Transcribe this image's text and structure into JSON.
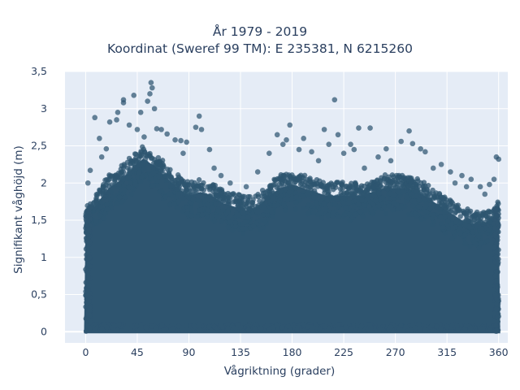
{
  "chart_data": {
    "type": "scatter",
    "title": "År 1979 - 2019",
    "subtitle": "Koordinat (Sweref 99 TM): E 235381, N 6215260",
    "xlabel": "Vågriktning (grader)",
    "ylabel": "Signifikant våghöjd (m)",
    "xlim": [
      -18,
      368
    ],
    "ylim": [
      -0.15,
      3.5
    ],
    "x_ticks": [
      0,
      45,
      90,
      135,
      180,
      225,
      270,
      315,
      360
    ],
    "y_ticks": [
      0,
      0.5,
      1,
      1.5,
      2,
      2.5,
      3,
      3.5
    ],
    "x_tick_labels": [
      "0",
      "45",
      "90",
      "135",
      "180",
      "225",
      "270",
      "315",
      "360"
    ],
    "y_tick_labels": [
      "0",
      "0,5",
      "1",
      "1,5",
      "2",
      "2,5",
      "3",
      "3,5"
    ],
    "marker_color": "#2e5570",
    "background_color": "#e5ecf6",
    "grid": true,
    "envelope": [
      {
        "x": 0,
        "y": 1.6
      },
      {
        "x": 10,
        "y": 1.85
      },
      {
        "x": 20,
        "y": 2.05
      },
      {
        "x": 30,
        "y": 2.15
      },
      {
        "x": 40,
        "y": 2.3
      },
      {
        "x": 50,
        "y": 2.45
      },
      {
        "x": 60,
        "y": 2.35
      },
      {
        "x": 70,
        "y": 2.2
      },
      {
        "x": 80,
        "y": 2.05
      },
      {
        "x": 90,
        "y": 1.95
      },
      {
        "x": 100,
        "y": 2.0
      },
      {
        "x": 110,
        "y": 1.95
      },
      {
        "x": 120,
        "y": 1.85
      },
      {
        "x": 130,
        "y": 1.8
      },
      {
        "x": 140,
        "y": 1.75
      },
      {
        "x": 150,
        "y": 1.8
      },
      {
        "x": 160,
        "y": 1.95
      },
      {
        "x": 170,
        "y": 2.05
      },
      {
        "x": 180,
        "y": 2.1
      },
      {
        "x": 190,
        "y": 2.05
      },
      {
        "x": 200,
        "y": 2.0
      },
      {
        "x": 210,
        "y": 1.95
      },
      {
        "x": 220,
        "y": 1.95
      },
      {
        "x": 230,
        "y": 1.95
      },
      {
        "x": 240,
        "y": 1.95
      },
      {
        "x": 250,
        "y": 2.0
      },
      {
        "x": 260,
        "y": 2.05
      },
      {
        "x": 270,
        "y": 2.05
      },
      {
        "x": 280,
        "y": 2.05
      },
      {
        "x": 290,
        "y": 2.0
      },
      {
        "x": 300,
        "y": 1.9
      },
      {
        "x": 310,
        "y": 1.8
      },
      {
        "x": 320,
        "y": 1.7
      },
      {
        "x": 330,
        "y": 1.6
      },
      {
        "x": 340,
        "y": 1.55
      },
      {
        "x": 350,
        "y": 1.6
      },
      {
        "x": 360,
        "y": 1.7
      }
    ],
    "outliers": [
      {
        "x": 57,
        "y": 3.35
      },
      {
        "x": 58,
        "y": 3.28
      },
      {
        "x": 56,
        "y": 3.2
      },
      {
        "x": 33,
        "y": 3.12
      },
      {
        "x": 33,
        "y": 3.08
      },
      {
        "x": 42,
        "y": 3.18
      },
      {
        "x": 54,
        "y": 3.1
      },
      {
        "x": 60,
        "y": 3.0
      },
      {
        "x": 48,
        "y": 2.95
      },
      {
        "x": 28,
        "y": 2.95
      },
      {
        "x": 8,
        "y": 2.88
      },
      {
        "x": 21,
        "y": 2.82
      },
      {
        "x": 27,
        "y": 2.85
      },
      {
        "x": 38,
        "y": 2.78
      },
      {
        "x": 45,
        "y": 2.72
      },
      {
        "x": 51,
        "y": 2.62
      },
      {
        "x": 62,
        "y": 2.73
      },
      {
        "x": 66,
        "y": 2.72
      },
      {
        "x": 71,
        "y": 2.66
      },
      {
        "x": 78,
        "y": 2.58
      },
      {
        "x": 83,
        "y": 2.57
      },
      {
        "x": 88,
        "y": 2.55
      },
      {
        "x": 99,
        "y": 2.9
      },
      {
        "x": 101,
        "y": 2.72
      },
      {
        "x": 96,
        "y": 2.75
      },
      {
        "x": 108,
        "y": 2.45
      },
      {
        "x": 112,
        "y": 2.2
      },
      {
        "x": 118,
        "y": 2.1
      },
      {
        "x": 178,
        "y": 2.78
      },
      {
        "x": 167,
        "y": 2.65
      },
      {
        "x": 175,
        "y": 2.58
      },
      {
        "x": 172,
        "y": 2.52
      },
      {
        "x": 160,
        "y": 2.4
      },
      {
        "x": 190,
        "y": 2.6
      },
      {
        "x": 197,
        "y": 2.42
      },
      {
        "x": 208,
        "y": 2.72
      },
      {
        "x": 212,
        "y": 2.52
      },
      {
        "x": 217,
        "y": 3.12
      },
      {
        "x": 220,
        "y": 2.65
      },
      {
        "x": 225,
        "y": 2.4
      },
      {
        "x": 231,
        "y": 2.52
      },
      {
        "x": 234,
        "y": 2.45
      },
      {
        "x": 238,
        "y": 2.74
      },
      {
        "x": 248,
        "y": 2.74
      },
      {
        "x": 255,
        "y": 2.35
      },
      {
        "x": 262,
        "y": 2.46
      },
      {
        "x": 275,
        "y": 2.56
      },
      {
        "x": 282,
        "y": 2.7
      },
      {
        "x": 285,
        "y": 2.53
      },
      {
        "x": 292,
        "y": 2.46
      },
      {
        "x": 296,
        "y": 2.42
      },
      {
        "x": 310,
        "y": 2.25
      },
      {
        "x": 318,
        "y": 2.15
      },
      {
        "x": 328,
        "y": 2.1
      },
      {
        "x": 332,
        "y": 1.95
      },
      {
        "x": 336,
        "y": 2.05
      },
      {
        "x": 344,
        "y": 1.95
      },
      {
        "x": 352,
        "y": 1.98
      },
      {
        "x": 356,
        "y": 2.05
      },
      {
        "x": 358,
        "y": 2.35
      },
      {
        "x": 360,
        "y": 2.32
      },
      {
        "x": 4,
        "y": 2.17
      },
      {
        "x": 2,
        "y": 2.0
      },
      {
        "x": 14,
        "y": 2.35
      },
      {
        "x": 18,
        "y": 2.46
      },
      {
        "x": 12,
        "y": 2.6
      },
      {
        "x": 85,
        "y": 2.4
      },
      {
        "x": 126,
        "y": 2.0
      },
      {
        "x": 140,
        "y": 1.95
      },
      {
        "x": 150,
        "y": 2.15
      },
      {
        "x": 186,
        "y": 2.45
      },
      {
        "x": 203,
        "y": 2.3
      },
      {
        "x": 243,
        "y": 2.2
      },
      {
        "x": 266,
        "y": 2.3
      },
      {
        "x": 303,
        "y": 2.2
      },
      {
        "x": 322,
        "y": 2.0
      },
      {
        "x": 348,
        "y": 1.85
      }
    ]
  }
}
